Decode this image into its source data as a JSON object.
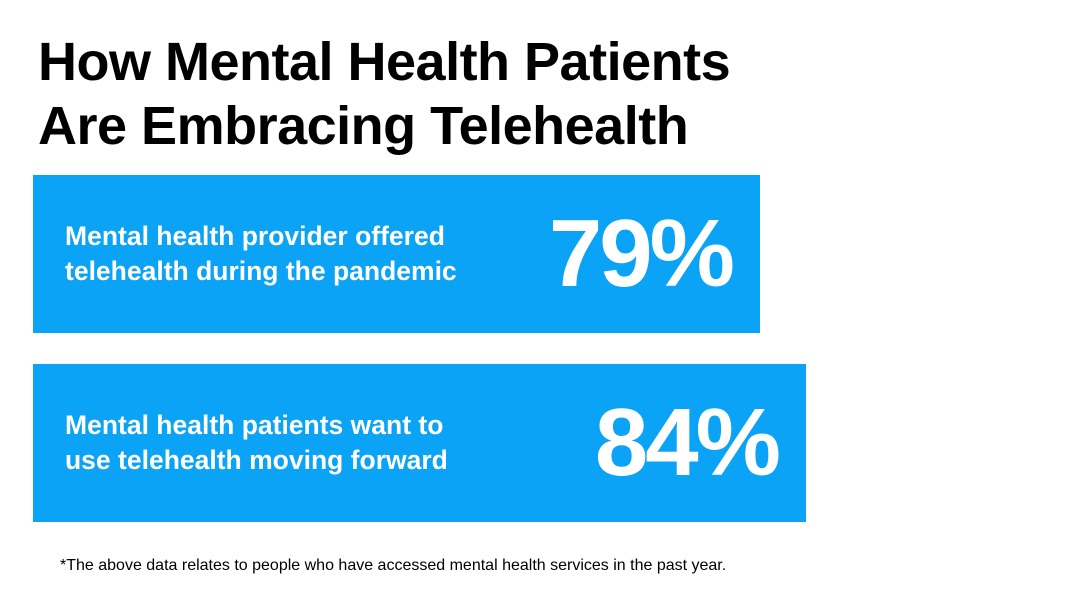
{
  "title_lines": [
    "How Mental Health Patients",
    "Are Embracing Telehealth"
  ],
  "footnote": "*The above data relates to people who have accessed mental health services in the past year.",
  "colors": {
    "bar": "#0aa3f5",
    "bar_text": "#ffffff",
    "title_text": "#000000"
  },
  "chart_data": {
    "type": "bar",
    "orientation": "horizontal",
    "title": "How Mental Health Patients Are Embracing Telehealth",
    "categories": [
      "Mental health provider offered telehealth during the pandemic",
      "Mental health patients want to use telehealth moving forward"
    ],
    "values": [
      79,
      84
    ],
    "unit": "%",
    "value_labels": [
      "79%",
      "84%"
    ],
    "category_label_lines": [
      [
        "Mental health provider offered",
        "telehealth during the pandemic"
      ],
      [
        "Mental health patients want to",
        "use telehealth moving forward"
      ]
    ],
    "xlim": [
      0,
      100
    ],
    "grid": false,
    "legend": "none"
  }
}
